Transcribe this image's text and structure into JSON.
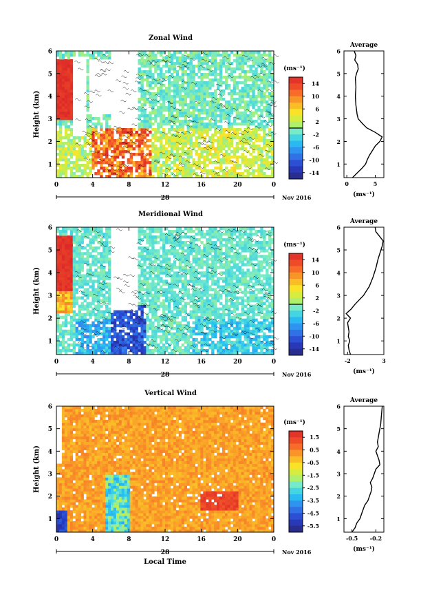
{
  "chart_data": [
    {
      "type": "heatmap",
      "title": "Zonal Wind",
      "ylabel": "Height (km)",
      "xlabel": "",
      "x_range": [
        0,
        24
      ],
      "y_range": [
        0.4,
        6
      ],
      "x_ticks": [
        "0",
        "4",
        "8",
        "12",
        "16",
        "20",
        "0"
      ],
      "y_ticks": [
        "1",
        "2",
        "3",
        "4",
        "5",
        "6"
      ],
      "date_label": "28",
      "date_range_label": "Nov 2016",
      "colorbar": {
        "unit": "(ms⁻¹)",
        "ticks": [
          "14",
          "10",
          "6",
          "2",
          "-2",
          "-6",
          "-10",
          "-14"
        ],
        "range": [
          -16,
          16
        ]
      },
      "average_profile": {
        "title": "Average",
        "xlabel": "(ms⁻¹)",
        "x_ticks": [
          "0",
          "5"
        ],
        "x_range": [
          -0.5,
          6.5
        ],
        "y_ticks": [
          "1",
          "2",
          "3",
          "4",
          "5",
          "6"
        ],
        "heights": [
          0.4,
          0.6,
          0.8,
          1.0,
          1.2,
          1.4,
          1.6,
          1.8,
          2.0,
          2.2,
          2.4,
          2.6,
          2.8,
          3.0,
          3.2,
          3.6,
          4.0,
          4.4,
          4.8,
          5.0,
          5.2,
          5.4,
          5.6,
          5.8,
          6.0
        ],
        "values": [
          1.0,
          1.8,
          2.6,
          3.3,
          3.6,
          4.0,
          4.5,
          5.0,
          5.8,
          6.2,
          5.0,
          3.5,
          2.7,
          2.0,
          1.8,
          1.6,
          1.5,
          1.6,
          1.5,
          1.7,
          2.0,
          1.9,
          1.4,
          1.6,
          1.3
        ]
      }
    },
    {
      "type": "heatmap",
      "title": "Meridional Wind",
      "ylabel": "Height (km)",
      "xlabel": "",
      "x_range": [
        0,
        24
      ],
      "y_range": [
        0.4,
        6
      ],
      "x_ticks": [
        "0",
        "4",
        "8",
        "12",
        "16",
        "20",
        "0"
      ],
      "y_ticks": [
        "1",
        "2",
        "3",
        "4",
        "5",
        "6"
      ],
      "date_label": "28",
      "date_range_label": "Nov 2016",
      "colorbar": {
        "unit": "(ms⁻¹)",
        "ticks": [
          "14",
          "10",
          "6",
          "2",
          "-2",
          "-6",
          "-10",
          "-14"
        ],
        "range": [
          -16,
          16
        ]
      },
      "average_profile": {
        "title": "Average",
        "xlabel": "(ms⁻¹)",
        "x_ticks": [
          "-2",
          "3"
        ],
        "x_range": [
          -2.5,
          3.0
        ],
        "y_ticks": [
          "1",
          "2",
          "3",
          "4",
          "5",
          "6"
        ],
        "heights": [
          0.4,
          0.6,
          0.8,
          1.0,
          1.2,
          1.4,
          1.6,
          1.8,
          2.0,
          2.2,
          2.4,
          2.6,
          2.8,
          3.0,
          3.4,
          3.8,
          4.2,
          4.6,
          5.0,
          5.2,
          5.4,
          5.6,
          5.8,
          6.0
        ],
        "values": [
          -1.6,
          -1.8,
          -1.9,
          -1.7,
          -1.9,
          -1.8,
          -1.9,
          -2.0,
          -1.6,
          -2.2,
          -1.5,
          -1.0,
          -0.4,
          0.2,
          1.0,
          1.5,
          1.9,
          2.2,
          2.6,
          2.8,
          2.9,
          2.4,
          1.9,
          1.8
        ]
      }
    },
    {
      "type": "heatmap",
      "title": "Vertical Wind",
      "ylabel": "Height (km)",
      "xlabel": "Local Time",
      "x_range": [
        0,
        24
      ],
      "y_range": [
        0.4,
        6
      ],
      "x_ticks": [
        "0",
        "4",
        "8",
        "12",
        "16",
        "20",
        "0"
      ],
      "y_ticks": [
        "1",
        "2",
        "3",
        "4",
        "5",
        "6"
      ],
      "date_label": "28",
      "date_range_label": "Nov 2016",
      "colorbar": {
        "unit": "(ms⁻¹)",
        "ticks": [
          "1.5",
          "0.5",
          "-0.5",
          "-1.5",
          "-2.5",
          "-3.5",
          "-4.5",
          "-5.5"
        ],
        "range": [
          -6.0,
          2.0
        ]
      },
      "average_profile": {
        "title": "Average",
        "xlabel": "(ms⁻¹)",
        "x_ticks": [
          "-0.5",
          "-0.2"
        ],
        "x_range": [
          -0.6,
          -0.1
        ],
        "y_ticks": [
          "1",
          "2",
          "3",
          "4",
          "5",
          "6"
        ],
        "heights": [
          0.4,
          0.6,
          0.8,
          1.0,
          1.2,
          1.4,
          1.6,
          1.8,
          2.0,
          2.2,
          2.4,
          2.6,
          2.8,
          3.0,
          3.2,
          3.4,
          3.6,
          3.8,
          4.0,
          4.2,
          4.4,
          4.8,
          5.2,
          5.6,
          6.0
        ],
        "values": [
          -0.5,
          -0.46,
          -0.44,
          -0.4,
          -0.38,
          -0.36,
          -0.34,
          -0.3,
          -0.28,
          -0.26,
          -0.25,
          -0.27,
          -0.24,
          -0.22,
          -0.2,
          -0.15,
          -0.16,
          -0.18,
          -0.2,
          -0.17,
          -0.18,
          -0.16,
          -0.14,
          -0.13,
          -0.12
        ]
      }
    }
  ]
}
